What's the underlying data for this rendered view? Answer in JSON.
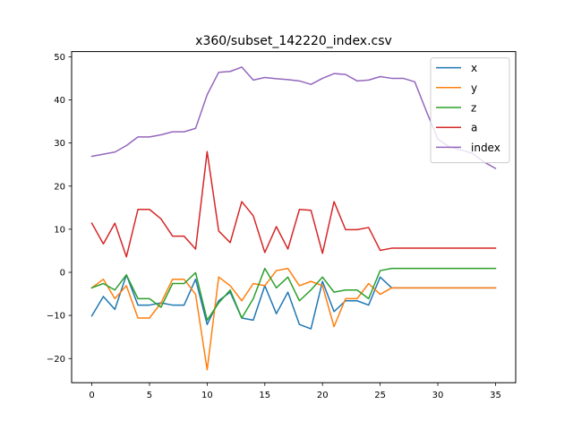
{
  "chart_data": {
    "type": "line",
    "title": "x360/subset_142220_index.csv",
    "xlabel": "",
    "ylabel": "",
    "xlim": [
      -1.75,
      36.75
    ],
    "ylim": [
      -25.6,
      51.2
    ],
    "x_ticks": [
      0,
      5,
      10,
      15,
      20,
      25,
      30,
      35
    ],
    "y_ticks": [
      -20,
      -10,
      0,
      10,
      20,
      30,
      40,
      50
    ],
    "y_tick_labels": [
      "−20",
      "−10",
      "0",
      "10",
      "20",
      "30",
      "40",
      "50"
    ],
    "legend_position": "upper right",
    "x": [
      0,
      1,
      2,
      3,
      4,
      5,
      6,
      7,
      8,
      9,
      10,
      11,
      12,
      13,
      14,
      15,
      16,
      17,
      18,
      19,
      20,
      21,
      22,
      23,
      24,
      25,
      26,
      27,
      28,
      29,
      30,
      31,
      32,
      33,
      34,
      35
    ],
    "series": [
      {
        "name": "x",
        "color": "#1f77b4",
        "values": [
          -10.1,
          -5.6,
          -8.6,
          -0.6,
          -7.6,
          -7.6,
          -7.1,
          -7.6,
          -7.6,
          -1.6,
          -12.1,
          -6.6,
          -4.6,
          -10.6,
          -11.1,
          -3.1,
          -9.6,
          -4.6,
          -12.1,
          -13.1,
          -2.1,
          -9.1,
          -6.6,
          -6.6,
          -7.6,
          -1.1,
          -3.6,
          -3.6,
          -3.6,
          -3.6,
          -3.6,
          -3.6,
          -3.6,
          -3.6,
          -3.6,
          -3.6
        ]
      },
      {
        "name": "y",
        "color": "#ff7f0e",
        "values": [
          -3.6,
          -1.6,
          -6.1,
          -3.1,
          -10.6,
          -10.6,
          -7.1,
          -1.6,
          -1.6,
          -5.1,
          -22.6,
          -1.1,
          -3.1,
          -6.6,
          -2.6,
          -3.1,
          0.4,
          0.9,
          -3.1,
          -2.1,
          -3.1,
          -12.6,
          -6.1,
          -6.1,
          -2.6,
          -5.1,
          -3.6,
          -3.6,
          -3.6,
          -3.6,
          -3.6,
          -3.6,
          -3.6,
          -3.6,
          -3.6,
          -3.6
        ]
      },
      {
        "name": "z",
        "color": "#2ca02c",
        "values": [
          -3.6,
          -2.6,
          -4.1,
          -0.6,
          -6.1,
          -6.1,
          -8.1,
          -2.6,
          -2.6,
          -0.1,
          -11.1,
          -7.1,
          -4.1,
          -10.6,
          -6.1,
          0.9,
          -3.6,
          -1.1,
          -6.6,
          -4.1,
          -1.1,
          -4.6,
          -4.1,
          -4.1,
          -6.1,
          0.4,
          0.9,
          0.9,
          0.9,
          0.9,
          0.9,
          0.9,
          0.9,
          0.9,
          0.9,
          0.9
        ]
      },
      {
        "name": "a",
        "color": "#d62728",
        "values": [
          11.4,
          6.6,
          11.4,
          3.6,
          14.6,
          14.6,
          12.4,
          8.4,
          8.4,
          5.4,
          28.0,
          9.6,
          6.9,
          16.4,
          13.1,
          4.6,
          10.6,
          5.4,
          14.6,
          14.4,
          4.4,
          16.4,
          9.9,
          9.9,
          10.4,
          5.1,
          5.6,
          5.6,
          5.6,
          5.6,
          5.6,
          5.6,
          5.6,
          5.6,
          5.6,
          5.6
        ]
      },
      {
        "name": "index",
        "color": "#9467bd",
        "values": [
          26.9,
          27.4,
          27.9,
          29.4,
          31.4,
          31.4,
          31.9,
          32.6,
          32.6,
          33.4,
          41.2,
          46.4,
          46.6,
          47.6,
          44.6,
          45.2,
          44.9,
          44.7,
          44.4,
          43.6,
          45.0,
          46.1,
          45.9,
          44.4,
          44.6,
          45.4,
          45.0,
          45.0,
          44.2,
          37.4,
          30.9,
          29.1,
          28.4,
          27.6,
          25.6,
          24.1
        ]
      }
    ]
  }
}
